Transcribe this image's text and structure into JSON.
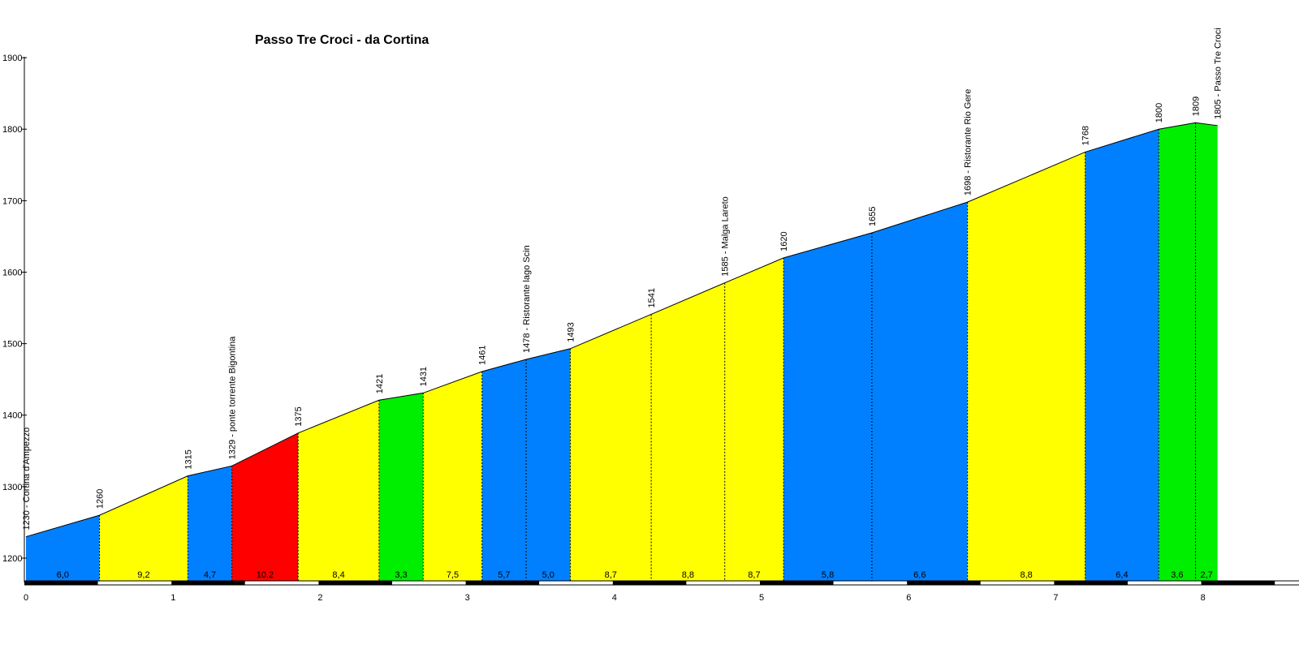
{
  "chart_data": {
    "type": "area",
    "title": "Passo Tre Croci - da Cortina",
    "xlabel": "",
    "ylabel": "",
    "xlim": [
      0,
      8.5
    ],
    "ylim": [
      1165,
      1920
    ],
    "y_ticks": [
      1200,
      1300,
      1400,
      1500,
      1600,
      1700,
      1800,
      1900
    ],
    "y_tick_labels": [
      "1200",
      "1300",
      "1400",
      "1500",
      "1600",
      "1700",
      "1800",
      "1900"
    ],
    "x_ticks": [
      0,
      1,
      2,
      3,
      4,
      5,
      6,
      7,
      8
    ],
    "x_tick_labels": [
      "0",
      "1",
      "2",
      "3",
      "4",
      "5",
      "6",
      "7",
      "8"
    ],
    "grid": false,
    "colors": {
      "blue": "#0080ff",
      "yellow": "#ffff00",
      "red": "#ff0000",
      "green": "#00ee00",
      "outline": "#000000"
    },
    "points": [
      {
        "km": 0.0,
        "elev": 1230,
        "label": "1230 - Cortina d'Ampezzo"
      },
      {
        "km": 0.5,
        "elev": 1260,
        "label": "1260"
      },
      {
        "km": 1.1,
        "elev": 1315,
        "label": "1315"
      },
      {
        "km": 1.4,
        "elev": 1329,
        "label": "1329 - ponte torrente Bigontina"
      },
      {
        "km": 1.85,
        "elev": 1375,
        "label": "1375"
      },
      {
        "km": 2.4,
        "elev": 1421,
        "label": "1421"
      },
      {
        "km": 2.7,
        "elev": 1431,
        "label": "1431"
      },
      {
        "km": 3.1,
        "elev": 1461,
        "label": "1461"
      },
      {
        "km": 3.4,
        "elev": 1478,
        "label": "1478 - Ristorante lago Scin"
      },
      {
        "km": 3.7,
        "elev": 1493,
        "label": "1493"
      },
      {
        "km": 4.25,
        "elev": 1541,
        "label": "1541"
      },
      {
        "km": 4.75,
        "elev": 1585,
        "label": "1585 - Malga Lareto"
      },
      {
        "km": 5.15,
        "elev": 1620,
        "label": "1620"
      },
      {
        "km": 5.75,
        "elev": 1655,
        "label": "1655"
      },
      {
        "km": 6.4,
        "elev": 1698,
        "label": "1698 - Ristorante Rio Gere"
      },
      {
        "km": 7.2,
        "elev": 1768,
        "label": "1768"
      },
      {
        "km": 7.7,
        "elev": 1800,
        "label": "1800"
      },
      {
        "km": 7.95,
        "elev": 1809,
        "label": "1809"
      },
      {
        "km": 8.1,
        "elev": 1805,
        "label": "1805 - Passo Tre Croci"
      }
    ],
    "segments": [
      {
        "grade": "6,0",
        "color": "blue"
      },
      {
        "grade": "9,2",
        "color": "yellow"
      },
      {
        "grade": "4,7",
        "color": "blue"
      },
      {
        "grade": "10,2",
        "color": "red"
      },
      {
        "grade": "8,4",
        "color": "yellow"
      },
      {
        "grade": "3,3",
        "color": "green"
      },
      {
        "grade": "7,5",
        "color": "yellow"
      },
      {
        "grade": "5,7",
        "color": "blue"
      },
      {
        "grade": "5,0",
        "color": "blue"
      },
      {
        "grade": "8,7",
        "color": "yellow"
      },
      {
        "grade": "8,8",
        "color": "yellow"
      },
      {
        "grade": "8,7",
        "color": "yellow"
      },
      {
        "grade": "5,8",
        "color": "blue"
      },
      {
        "grade": "6,6",
        "color": "blue"
      },
      {
        "grade": "8,8",
        "color": "yellow"
      },
      {
        "grade": "6,4",
        "color": "blue"
      },
      {
        "grade": "3,6",
        "color": "green"
      },
      {
        "grade": "2,7",
        "color": "green"
      }
    ]
  }
}
